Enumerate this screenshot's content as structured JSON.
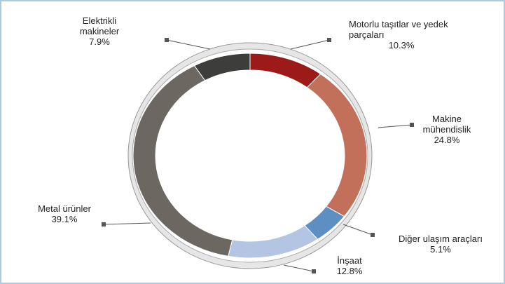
{
  "chart_data": {
    "type": "donut",
    "categories": [
      "Motorlu taşıtlar ve yedek parçaları",
      "Makine mühendislik",
      "Diğer ulaşım araçları",
      "İnşaat",
      "Metal ürünler",
      "Elektrikli makineler"
    ],
    "values": [
      10.3,
      24.8,
      5.1,
      12.8,
      39.1,
      7.9
    ],
    "value_labels": [
      "10.3%",
      "24.8%",
      "5.1%",
      "12.8%",
      "39.1%",
      "7.9%"
    ],
    "colors": [
      "#9c1a17",
      "#c2705a",
      "#5d8fc3",
      "#b3c5e3",
      "#6c6861",
      "#3d3d3b"
    ]
  }
}
